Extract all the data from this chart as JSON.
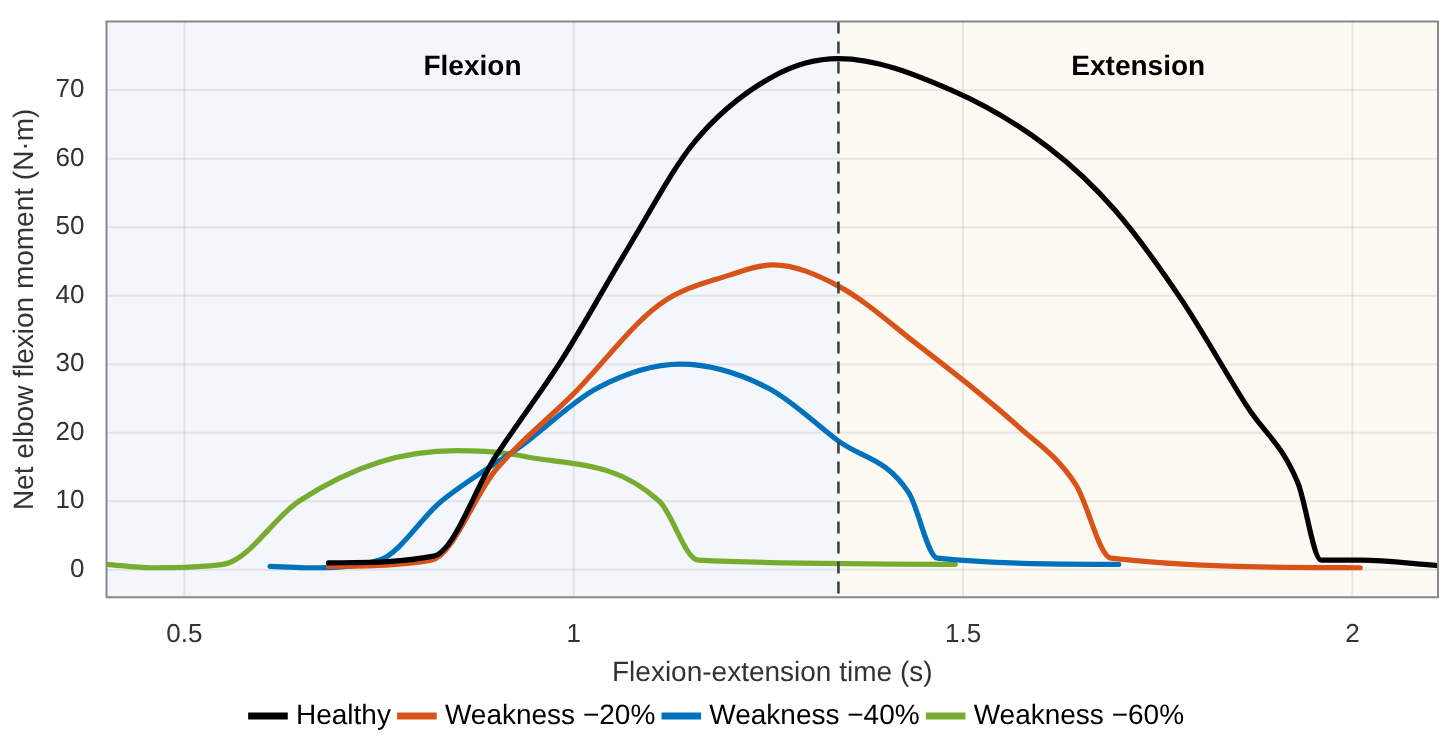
{
  "chart_data": {
    "type": "line",
    "xlabel": "Flexion-extension time (s)",
    "ylabel": "Net elbow flexion moment (N·m)",
    "xlim": [
      0.4,
      2.11
    ],
    "xticks": [
      0.5,
      1,
      1.5,
      2
    ],
    "ylim": [
      -4,
      80
    ],
    "yticks": [
      0,
      10,
      20,
      30,
      40,
      50,
      60,
      70
    ],
    "grid": true,
    "legend": "bottom",
    "marker": "none",
    "line_style": "solid",
    "bands": [
      {
        "axis": "x",
        "from": 0.4,
        "to": 1.34,
        "label": "Flexion",
        "color": "#f3f7fc"
      },
      {
        "axis": "x",
        "from": 1.34,
        "to": 2.11,
        "label": "Extension",
        "color": "#fdfaf3"
      }
    ],
    "ref_lines": [
      {
        "axis": "x",
        "value": 1.34,
        "color": "#404040",
        "line_style": "dashed"
      }
    ],
    "series": [
      {
        "name": "Healthy",
        "color": "#000000",
        "x": [
          0.685,
          0.82,
          0.9,
          0.985,
          1.07,
          1.155,
          1.256,
          1.34,
          1.485,
          1.61,
          1.695,
          1.78,
          1.865,
          1.93,
          1.96,
          2.01,
          2.11
        ],
        "values": [
          1,
          2,
          16.6,
          30.7,
          47,
          62.4,
          72,
          74.6,
          70,
          61.6,
          52.5,
          39.5,
          23.8,
          12.7,
          1.4,
          1.4,
          0.6
        ]
      },
      {
        "name": "Weakness −20%",
        "color": "#d95319",
        "x": [
          0.685,
          0.817,
          0.9,
          1,
          1.11,
          1.2,
          1.256,
          1.34,
          1.44,
          1.57,
          1.645,
          1.69,
          2.01
        ],
        "values": [
          0.5,
          1.4,
          14.6,
          25.7,
          38.7,
          43,
          44.5,
          41.4,
          33,
          21,
          12.4,
          1.7,
          0.3
        ]
      },
      {
        "name": "Weakness −40%",
        "color": "#0072bd",
        "x": [
          0.61,
          0.655,
          0.75,
          0.83,
          0.934,
          1.03,
          1.137,
          1.25,
          1.34,
          1.43,
          1.467,
          1.7
        ],
        "values": [
          0.5,
          0.3,
          1.4,
          10,
          18.2,
          26.5,
          30,
          26.5,
          18.8,
          11.3,
          1.7,
          0.8
        ]
      },
      {
        "name": "Weakness −60%",
        "color": "#77ac30",
        "x": [
          0.4,
          0.457,
          0.55,
          0.647,
          0.75,
          0.85,
          0.934,
          1.11,
          1.16,
          1.49
        ],
        "values": [
          0.8,
          0.3,
          0.8,
          10,
          15.7,
          17.4,
          16.6,
          10,
          1.4,
          0.8
        ]
      }
    ]
  }
}
